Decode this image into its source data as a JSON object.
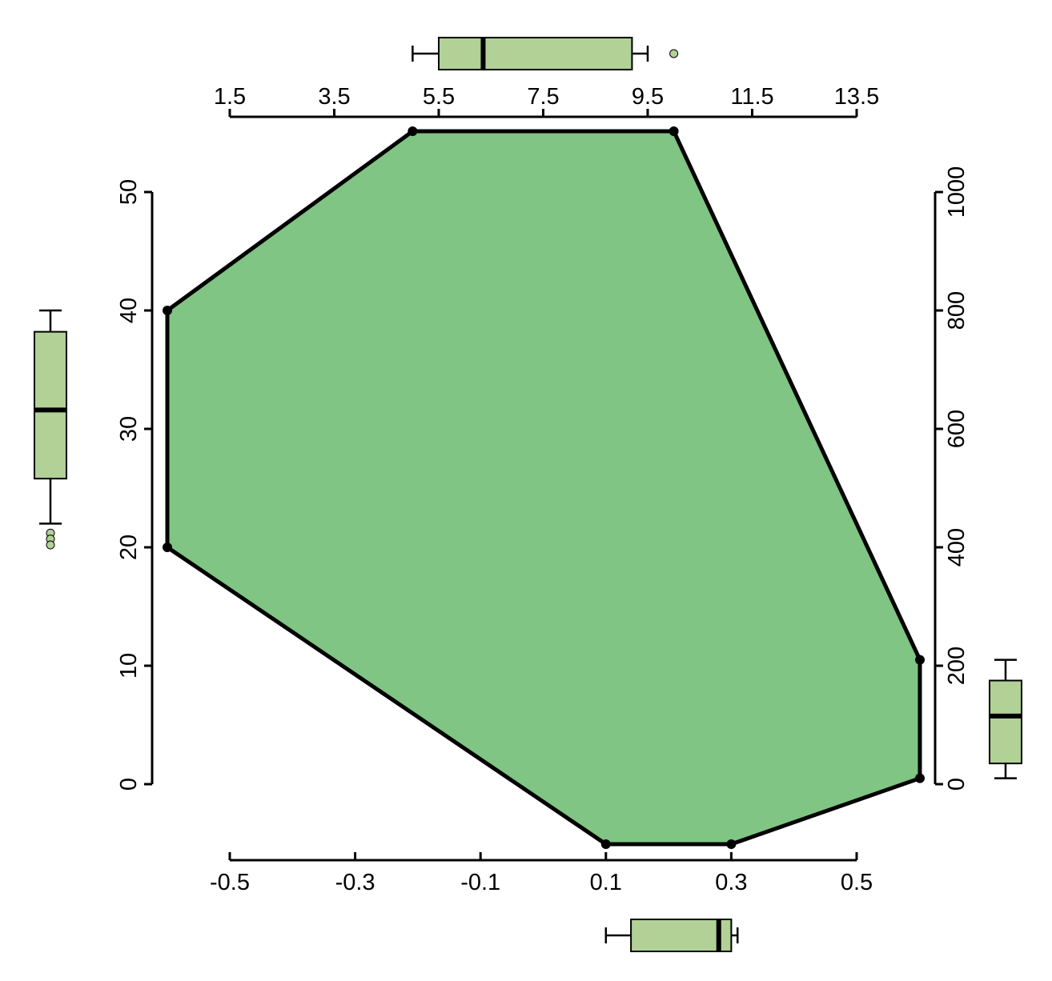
{
  "chart_data": {
    "type": "radar",
    "axes": [
      {
        "name": "bottom",
        "ticks": [
          "-0.5",
          "-0.3",
          "-0.1",
          "0.1",
          "0.3",
          "0.5"
        ],
        "range": [
          -0.5,
          0.5
        ]
      },
      {
        "name": "top",
        "ticks": [
          "1.5",
          "3.5",
          "5.5",
          "7.5",
          "9.5",
          "11.5",
          "13.5"
        ],
        "range": [
          1.5,
          13.5
        ]
      },
      {
        "name": "left",
        "ticks": [
          "0",
          "10",
          "20",
          "30",
          "40",
          "50"
        ],
        "range": [
          0,
          50
        ]
      },
      {
        "name": "right",
        "ticks": [
          "0",
          "200",
          "400",
          "600",
          "800",
          "1000"
        ],
        "range": [
          0,
          1000
        ]
      }
    ],
    "polygon": [
      {
        "x_top": 5.0,
        "note_axis": "top"
      },
      {
        "x_top": 10.0,
        "note_axis": "top"
      },
      {
        "y_right": 210,
        "note_axis": "right"
      },
      {
        "y_right": 10,
        "note_axis": "right"
      },
      {
        "x_bottom": 0.3,
        "note_axis": "bottom"
      },
      {
        "x_bottom": 0.1,
        "note_axis": "bottom"
      },
      {
        "y_left": 20,
        "note_axis": "left"
      },
      {
        "y_left": 40,
        "note_axis": "left"
      }
    ],
    "boxplots": {
      "top": {
        "whisker_low": 5.0,
        "q1": 5.5,
        "median": 6.35,
        "q3": 9.2,
        "whisker_high": 9.5,
        "outliers": [
          10.0
        ]
      },
      "bottom": {
        "whisker_low": 0.1,
        "q1": 0.14,
        "median": 0.28,
        "q3": 0.3,
        "whisker_high": 0.31,
        "outliers": []
      },
      "left": {
        "whisker_low": 22,
        "q1": 25.8,
        "median": 31.6,
        "q3": 38.2,
        "whisker_high": 40,
        "outliers": [
          21.2,
          20.7,
          20.2
        ]
      },
      "right": {
        "whisker_low": 10,
        "q1": 35,
        "median": 115,
        "q3": 175,
        "whisker_high": 210,
        "outliers": []
      }
    },
    "fill_color": "#80c583",
    "box_color": "#b1d197",
    "stroke_color": "#000000"
  }
}
